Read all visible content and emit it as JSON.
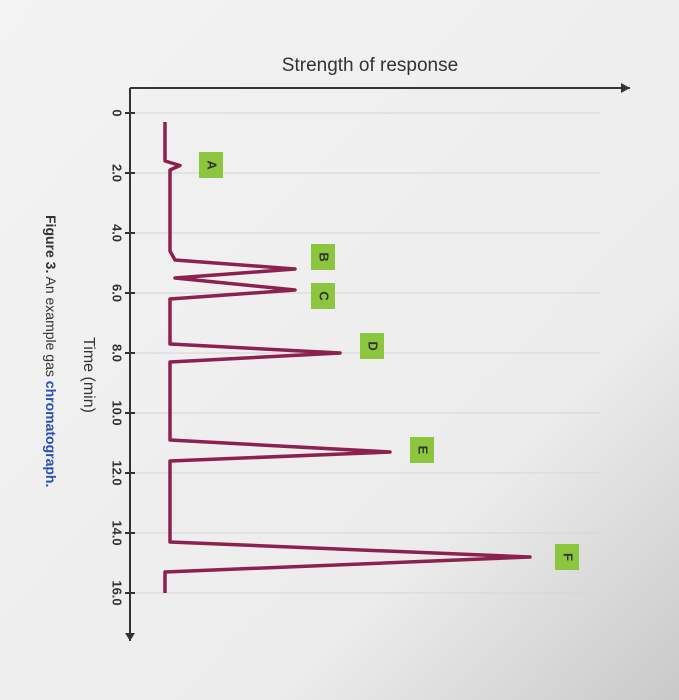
{
  "chart_data": {
    "type": "line",
    "ylabel": "Strength of response",
    "xlabel": "Time (min)",
    "x": [
      0.3,
      1.6,
      1.75,
      1.9,
      4.6,
      4.9,
      5.2,
      5.5,
      5.9,
      6.2,
      7.7,
      8.0,
      8.3,
      10.9,
      11.3,
      11.6,
      14.3,
      14.8,
      15.3,
      16.0
    ],
    "values": [
      7,
      7,
      10,
      8,
      8,
      9,
      33,
      9,
      33,
      8,
      8,
      42,
      8,
      8,
      52,
      8,
      8,
      80,
      7,
      7
    ],
    "color": "#8c2150",
    "xlim": [
      -0.3,
      17.6
    ],
    "ylim": [
      0,
      100
    ],
    "xticks": [
      0,
      {
        "value": 2,
        "label": "2.0"
      },
      {
        "value": 4,
        "label": "4.0"
      },
      {
        "value": 6,
        "label": "6.0"
      },
      {
        "value": 8,
        "label": "8.0"
      },
      {
        "value": 10,
        "label": "10.0"
      },
      {
        "value": 12,
        "label": "12.0"
      },
      {
        "value": 14,
        "label": "14.0"
      },
      {
        "value": 16,
        "label": "16.0"
      }
    ],
    "grid": true,
    "peak_labels": [
      "A",
      "B",
      "C",
      "D",
      "E",
      "F"
    ],
    "caption": {
      "number": "Figure 3.",
      "text": "An example gas",
      "term": "chromatograph."
    }
  }
}
